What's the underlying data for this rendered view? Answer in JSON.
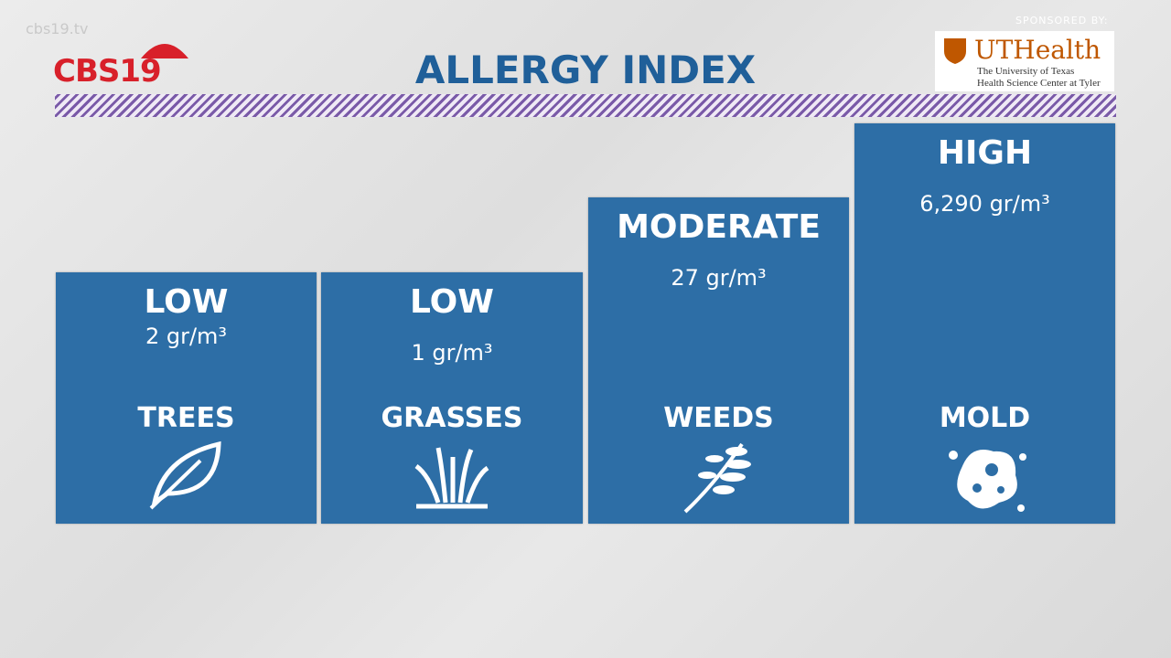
{
  "header": {
    "watermark": "cbs19.tv",
    "logo": "CBS19",
    "title": "ALLERGY INDEX"
  },
  "sponsor": {
    "label": "SPONSORED BY:",
    "name": "UTHealth",
    "line1": "The University of Texas",
    "line2": "Health Science Center at Tyler"
  },
  "cards": [
    {
      "level": "LOW",
      "amount": "2 gr/m³",
      "category": "TREES"
    },
    {
      "level": "LOW",
      "amount": "1 gr/m³",
      "category": "GRASSES"
    },
    {
      "level": "MODERATE",
      "amount": "27 gr/m³",
      "category": "WEEDS"
    },
    {
      "level": "HIGH",
      "amount": "6,290 gr/m³",
      "category": "MOLD"
    }
  ]
}
